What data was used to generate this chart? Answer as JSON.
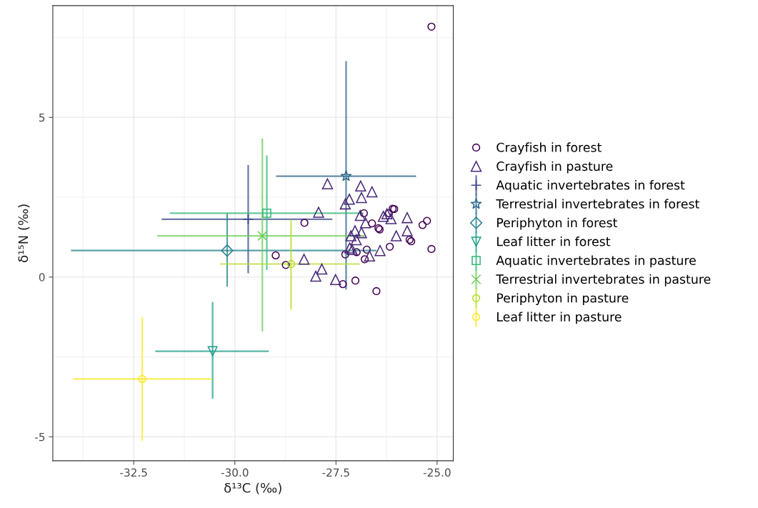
{
  "chart_data": {
    "type": "scatter",
    "xlabel": "δ¹³C (‰)",
    "ylabel": "δ¹⁵N (‰)",
    "xlim": [
      -34.5,
      -24.6
    ],
    "ylim": [
      -5.75,
      8.5
    ],
    "xticks": [
      -32.5,
      {
        "value": -30,
        "label": "-30.0"
      },
      -27.5,
      {
        "value": -25,
        "label": "-25.0"
      }
    ],
    "yticks": [
      -5,
      0,
      5
    ],
    "grid": true,
    "legend": "right",
    "series": [
      {
        "name": "Crayfish in forest",
        "color": "#440154",
        "marker": "circle",
        "x": [
          -25.14,
          -28.28,
          -28.99,
          -28.74,
          -27.33,
          -27.02,
          -26.5,
          -27.27,
          -26.99,
          -26.74,
          -26.79,
          -26.81,
          -26.61,
          -26.45,
          -26.42,
          -26.17,
          -26.06,
          -26.19,
          -25.68,
          -25.64,
          -25.36,
          -25.25,
          -25.14,
          -26.1
        ],
        "values": [
          7.84,
          1.7,
          0.68,
          0.38,
          -0.22,
          -0.11,
          -0.44,
          0.71,
          0.78,
          0.86,
          0.56,
          2.0,
          1.68,
          1.53,
          1.49,
          0.95,
          2.13,
          2.0,
          1.17,
          1.12,
          1.63,
          1.76,
          0.88,
          2.14
        ]
      },
      {
        "name": "Crayfish in pasture",
        "color": "#482878",
        "marker": "triangle",
        "x": [
          -27.71,
          -26.89,
          -26.61,
          -27.17,
          -27.27,
          -26.87,
          -27.93,
          -26.9,
          -26.77,
          -26.33,
          -26.24,
          -26.14,
          -25.74,
          -25.74,
          -26.01,
          -27.03,
          -26.87,
          -27.13,
          -27.0,
          -27.16,
          -27.1,
          -26.67,
          -26.41,
          -28.29,
          -27.85,
          -28.0,
          -27.51
        ],
        "values": [
          2.92,
          2.85,
          2.67,
          2.44,
          2.29,
          2.49,
          2.03,
          1.93,
          1.7,
          1.9,
          1.98,
          1.83,
          1.86,
          1.45,
          1.29,
          1.45,
          1.39,
          1.29,
          1.17,
          0.91,
          0.86,
          0.66,
          0.83,
          0.56,
          0.25,
          0.03,
          -0.08
        ]
      },
      {
        "name": "Aquatic invertebrates in forest",
        "color": "#3e4989",
        "marker": "plus",
        "x": [
          -29.67
        ],
        "values": [
          1.81
        ],
        "errors": [
          [
            0.12,
            3.51
          ]
        ],
        "xerrors": [
          [
            -31.81,
            -27.59
          ]
        ]
      },
      {
        "name": "Terrestrial invertebrates in forest",
        "color": "#31688e",
        "marker": "star",
        "x": [
          -27.25
        ],
        "values": [
          3.16
        ],
        "errors": [
          [
            -0.39,
            6.76
          ]
        ],
        "xerrors": [
          [
            -28.98,
            -25.52
          ]
        ]
      },
      {
        "name": "Periphyton in forest",
        "color": "#26828e",
        "marker": "diamond",
        "x": [
          -30.19
        ],
        "values": [
          0.83
        ],
        "errors": [
          [
            -0.3,
            2.0
          ]
        ],
        "xerrors": [
          [
            -34.05,
            -26.5
          ]
        ]
      },
      {
        "name": "Leaf litter in forest",
        "color": "#1f9e89",
        "marker": "triangle_down",
        "x": [
          -30.55
        ],
        "values": [
          -2.32
        ],
        "errors": [
          [
            -3.81,
            -0.78
          ]
        ],
        "xerrors": [
          [
            -31.97,
            -29.16
          ]
        ]
      },
      {
        "name": "Aquatic invertebrates in pasture",
        "color": "#35b779",
        "marker": "square",
        "x": [
          -29.21
        ],
        "values": [
          2.0
        ],
        "errors": [
          [
            0.22,
            3.81
          ]
        ],
        "xerrors": [
          [
            -31.61,
            -26.82
          ]
        ]
      },
      {
        "name": "Terrestrial invertebrates in pasture",
        "color": "#6ece58",
        "marker": "cross",
        "x": [
          -29.32
        ],
        "values": [
          1.29
        ],
        "errors": [
          [
            -1.7,
            4.34
          ]
        ],
        "xerrors": [
          [
            -31.92,
            -26.79
          ]
        ]
      },
      {
        "name": "Periphyton in pasture",
        "color": "#b5de2b",
        "marker": "circle",
        "x": [
          -28.61
        ],
        "values": [
          0.41
        ],
        "errors": [
          [
            -1.02,
            1.8
          ]
        ],
        "xerrors": [
          [
            -30.37,
            -26.91
          ]
        ]
      },
      {
        "name": "Leaf litter in pasture",
        "color": "#fde725",
        "marker": "circle",
        "x": [
          -32.29
        ],
        "values": [
          -3.19
        ],
        "errors": [
          [
            -5.13,
            -1.27
          ]
        ],
        "xerrors": [
          [
            -34.0,
            -30.56
          ]
        ]
      }
    ]
  }
}
